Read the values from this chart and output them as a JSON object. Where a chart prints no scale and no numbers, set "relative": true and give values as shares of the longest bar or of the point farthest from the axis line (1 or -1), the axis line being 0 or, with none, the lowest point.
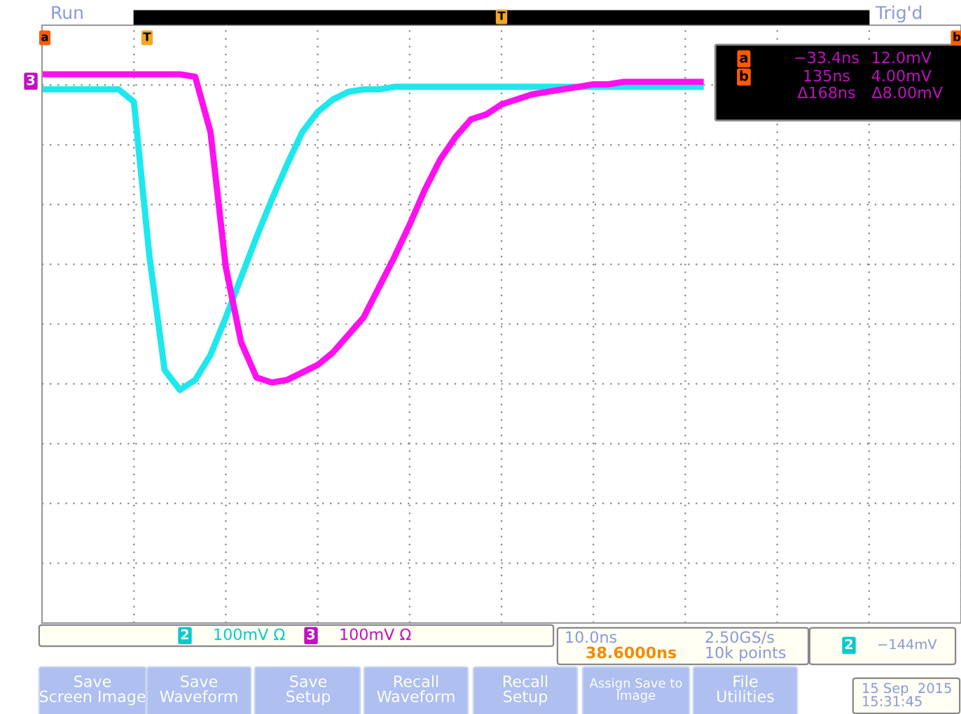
{
  "chart_data": {
    "type": "line",
    "relative": true,
    "grid": true,
    "legend": false,
    "tick_labels": false,
    "line_style": "solid",
    "marker": "none",
    "categories": [
      null,
      null,
      null,
      null,
      null,
      null,
      null,
      null,
      null,
      null,
      null,
      null,
      null,
      null,
      null,
      null,
      null,
      null,
      null,
      null,
      null,
      null,
      null,
      null,
      null,
      null,
      null,
      null,
      null,
      null,
      null,
      null,
      null,
      null,
      null,
      null,
      null,
      null,
      null,
      null,
      null,
      null,
      null,
      null,
      null,
      null,
      null,
      null,
      null,
      null,
      null,
      null,
      null,
      null,
      null,
      null,
      null,
      null,
      null,
      null,
      null
    ],
    "series": [
      {
        "color": "#1ee8ee",
        "values": [
          0.94,
          0.94,
          0.94,
          0.94,
          0.94,
          0.94,
          0.89,
          0.28,
          -0.18,
          -0.26,
          -0.22,
          -0.12,
          0.03,
          0.19,
          0.35,
          0.5,
          0.64,
          0.77,
          0.85,
          0.9,
          0.93,
          0.94,
          0.94,
          0.95,
          0.95,
          0.95,
          0.95,
          0.95,
          0.95,
          0.95,
          0.95,
          0.95,
          0.95,
          0.95,
          0.95,
          0.95,
          0.95,
          0.95,
          0.95,
          0.95,
          0.95,
          0.95,
          0.95,
          0.95,
          null,
          null,
          null,
          null,
          null,
          null,
          null,
          null,
          null,
          null,
          null,
          null,
          null,
          null,
          null,
          null,
          null
        ]
      },
      {
        "color": "#ff10f0",
        "values": [
          1.0,
          1.0,
          1.0,
          1.0,
          1.0,
          1.0,
          1.0,
          1.0,
          1.0,
          1.0,
          0.99,
          0.77,
          0.23,
          -0.07,
          -0.21,
          -0.23,
          -0.22,
          -0.19,
          -0.16,
          -0.11,
          -0.04,
          0.03,
          0.15,
          0.27,
          0.4,
          0.54,
          0.66,
          0.75,
          0.82,
          0.84,
          0.88,
          0.9,
          0.92,
          0.93,
          0.94,
          0.95,
          0.96,
          0.96,
          0.97,
          0.97,
          0.97,
          0.97,
          0.97,
          0.97,
          null,
          null,
          null,
          null,
          null,
          null,
          null,
          null,
          null,
          null,
          null,
          null,
          null,
          null,
          null,
          null,
          null
        ]
      }
    ],
    "annotations": [
      "Run",
      "Trig'd",
      "a",
      "T",
      "T",
      "b",
      "a",
      "−33.4ns",
      "12.0mV",
      "b",
      "135ns",
      "4.00mV",
      "Δ168ns",
      "Δ8.00mV",
      "2",
      "100mV Ω",
      "3",
      "100mV Ω",
      "10.0ns",
      "38.6000ns",
      "2.50GS/s",
      "10k points",
      "2",
      "−144mV",
      "Save\nScreen Image",
      "Save\nWaveform",
      "Save\nSetup",
      "Recall\nWaveform",
      "Recall\nSetup",
      "Assign Save to\nImage",
      "File\nUtilities",
      "15 Sep  2015\n15:31:45",
      "3"
    ]
  }
}
